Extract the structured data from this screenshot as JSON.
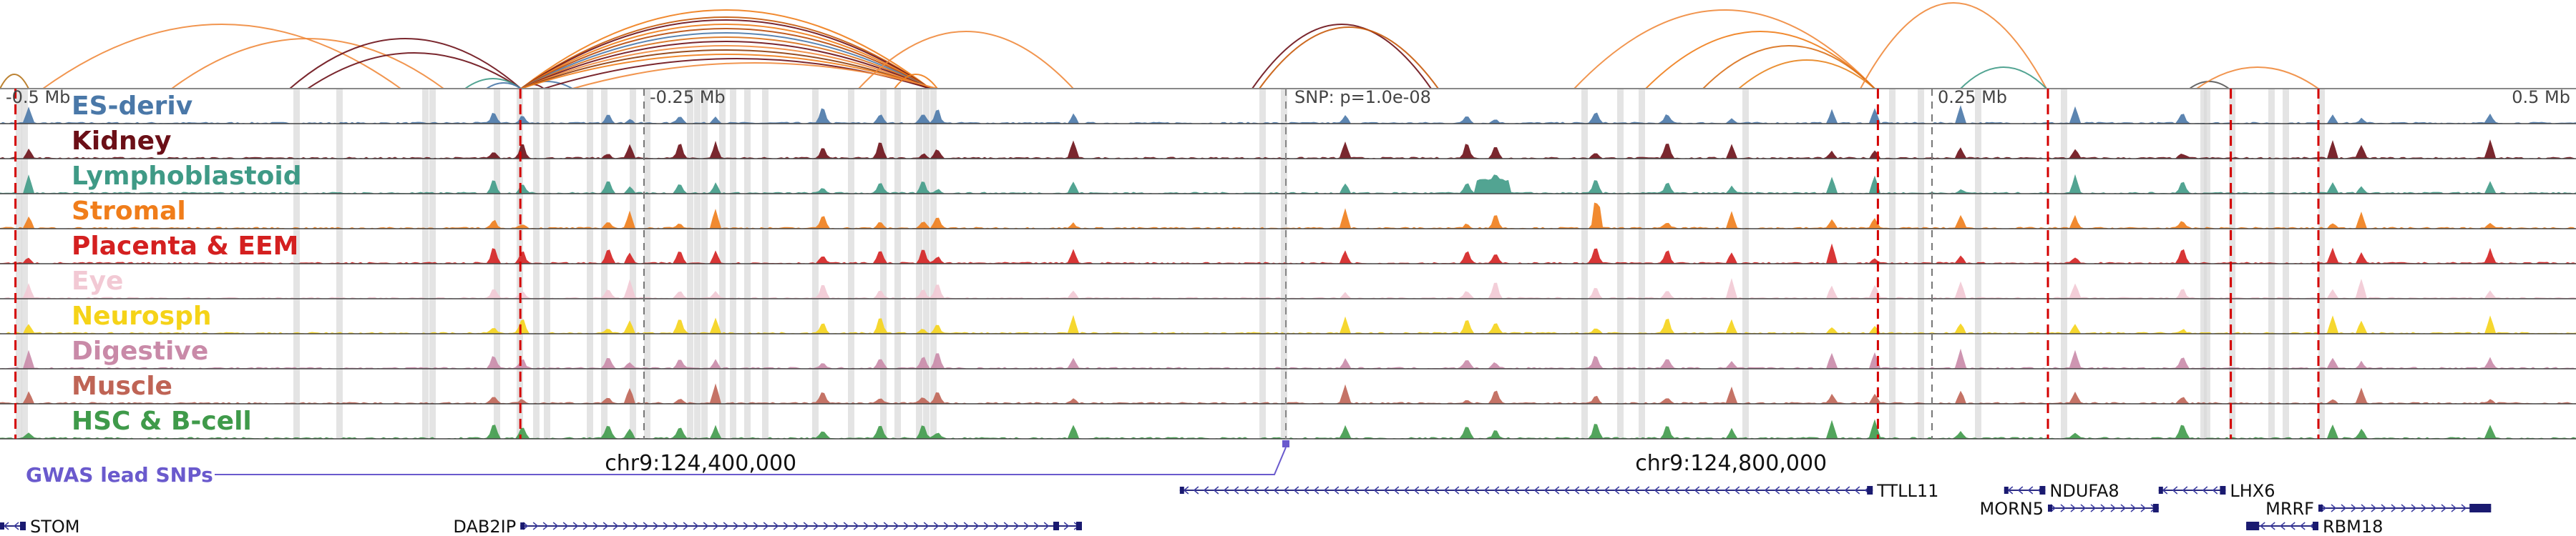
{
  "axis": {
    "ticks": [
      {
        "label": "-0.5 Mb",
        "pos": 0.0
      },
      {
        "label": "-0.25 Mb",
        "pos": 0.25
      },
      {
        "label": "0.25 Mb",
        "pos": 0.75
      },
      {
        "label": "0.5 Mb",
        "pos": 1.0
      }
    ],
    "center_label": "SNP: p=1.0e-08"
  },
  "tracks": [
    {
      "name": "ES-deriv",
      "color": "#4a78a8"
    },
    {
      "name": "Kidney",
      "color": "#6b0f17"
    },
    {
      "name": "Lymphoblastoid",
      "color": "#3f9a86"
    },
    {
      "name": "Stromal",
      "color": "#f07d1a"
    },
    {
      "name": "Placenta & EEM",
      "color": "#d42020"
    },
    {
      "name": "Eye",
      "color": "#f2c9d4"
    },
    {
      "name": "Neurosph",
      "color": "#f5d318"
    },
    {
      "name": "Digestive",
      "color": "#c98aa8"
    },
    {
      "name": "Muscle",
      "color": "#bf6455"
    },
    {
      "name": "HSC & B-cell",
      "color": "#3f9a4a"
    }
  ],
  "coordinates": [
    {
      "label": "chr9:124,400,000",
      "pos": 0.272
    },
    {
      "label": "chr9:124,800,000",
      "pos": 0.672
    }
  ],
  "gwas": {
    "label": "GWAS lead SNPs",
    "color": "#6a5acd",
    "snp_pos": 0.5
  },
  "red_markers": [
    0.006,
    0.202,
    0.729,
    0.795,
    0.866,
    0.9
  ],
  "genes": [
    {
      "name": "STOM",
      "start": 0.0,
      "end": 0.01,
      "row": 2,
      "strand": "-",
      "label_side": "right"
    },
    {
      "name": "DAB2IP",
      "start": 0.202,
      "end": 0.42,
      "row": 2,
      "strand": "+",
      "label_side": "left"
    },
    {
      "name": "TTLL11",
      "start": 0.458,
      "end": 0.727,
      "row": 0,
      "strand": "-",
      "label_side": "right"
    },
    {
      "name": "NDUFA8",
      "start": 0.778,
      "end": 0.794,
      "row": 0,
      "strand": "-",
      "label_side": "right"
    },
    {
      "name": "MORN5",
      "start": 0.795,
      "end": 0.838,
      "row": 1,
      "strand": "+",
      "label_side": "left"
    },
    {
      "name": "LHX6",
      "start": 0.838,
      "end": 0.864,
      "row": 0,
      "strand": "-",
      "label_side": "right"
    },
    {
      "name": "MRRF",
      "start": 0.9,
      "end": 0.967,
      "row": 1,
      "strand": "+",
      "label_side": "left"
    },
    {
      "name": "RBM18",
      "start": 0.872,
      "end": 0.9,
      "row": 2,
      "strand": "-",
      "label_side": "right"
    }
  ]
}
